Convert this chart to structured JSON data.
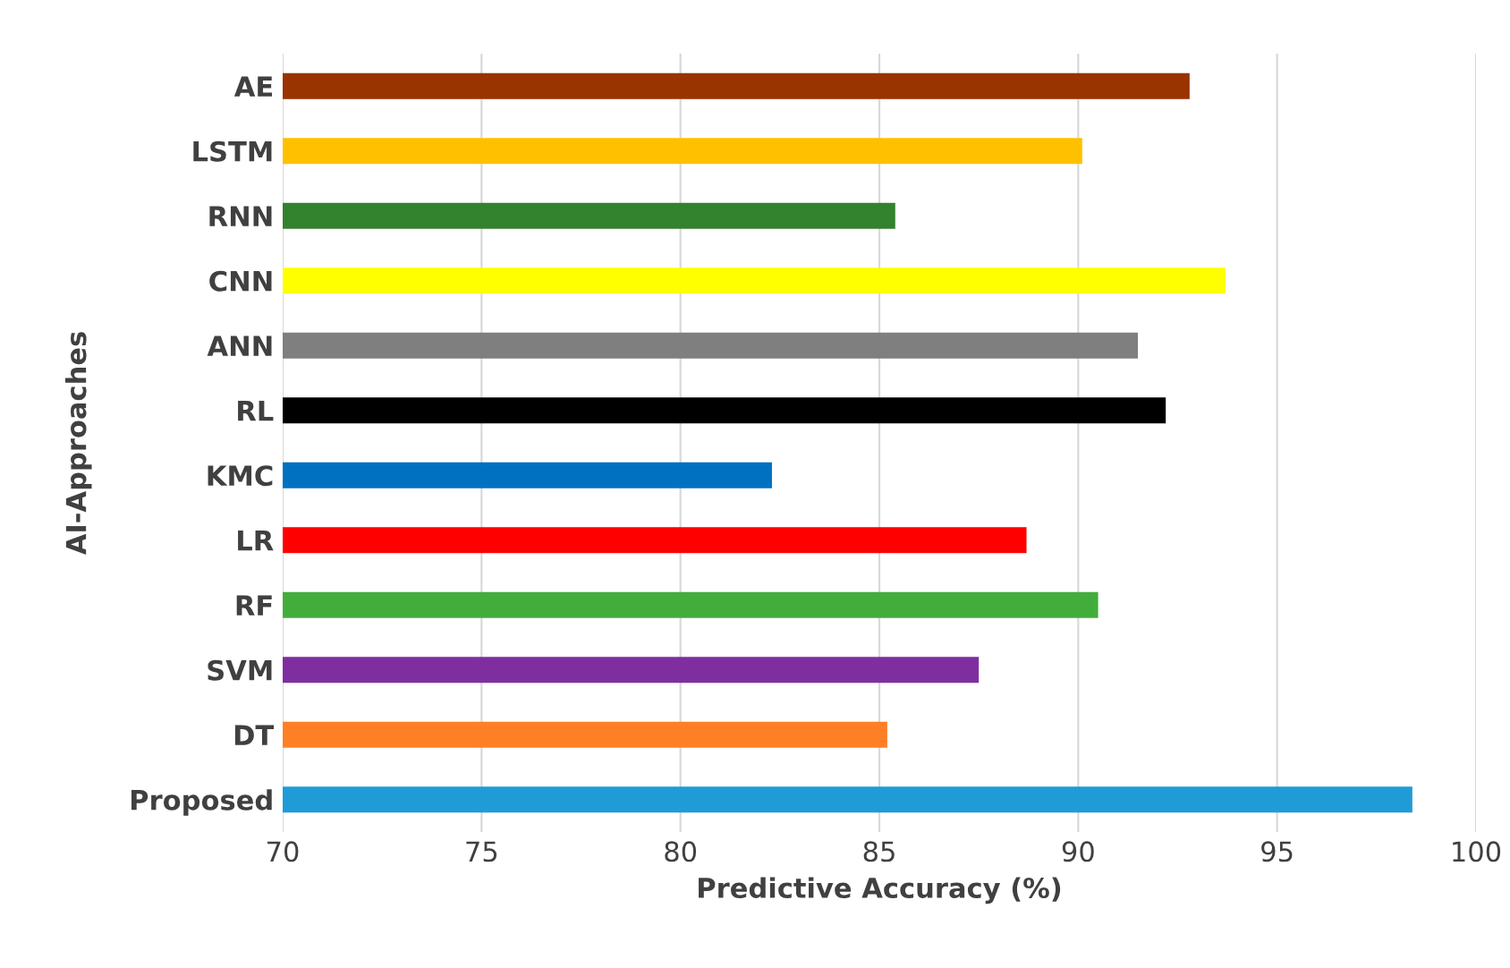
{
  "chart_data": {
    "type": "bar",
    "orientation": "horizontal",
    "xlabel": "Predictive Accuracy (%)",
    "ylabel": "AI-Approaches",
    "categories": [
      "AE",
      "LSTM",
      "RNN",
      "CNN",
      "ANN",
      "RL",
      "KMC",
      "LR",
      "RF",
      "SVM",
      "DT",
      "Proposed"
    ],
    "values": [
      92.8,
      90.1,
      85.4,
      93.7,
      91.5,
      92.2,
      82.3,
      88.7,
      90.5,
      87.5,
      85.2,
      98.4
    ],
    "colors": [
      "#993300",
      "#ffc000",
      "#33822e",
      "#ffff00",
      "#7f7f7f",
      "#000000",
      "#0070c0",
      "#ff0000",
      "#43ad3c",
      "#7f2ea0",
      "#ff7f27",
      "#1f9bd7"
    ],
    "xlim": [
      70,
      100
    ],
    "xticks": [
      70,
      75,
      80,
      85,
      90,
      95,
      100
    ],
    "grid": "x",
    "legend": false
  }
}
